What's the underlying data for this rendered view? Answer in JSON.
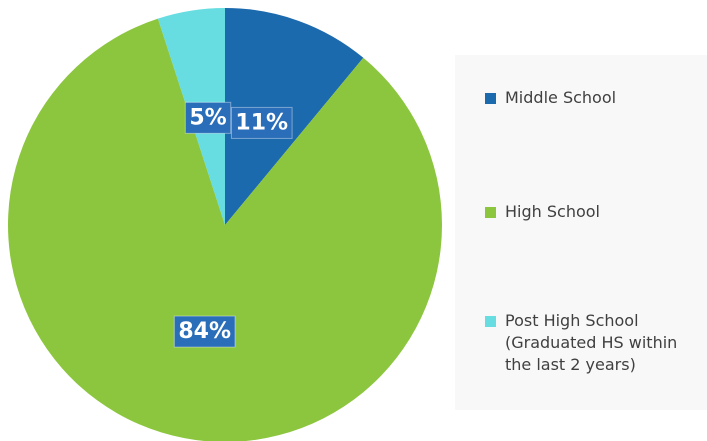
{
  "chart_data": {
    "type": "pie",
    "categories": [
      "Middle School",
      "High School",
      "Post High School (Graduated HS within the last 2 years)"
    ],
    "values": [
      11,
      84,
      5
    ],
    "value_labels": [
      "11%",
      "84%",
      "5%"
    ],
    "colors": [
      "#1c6aae",
      "#8cc63f",
      "#67dde1"
    ],
    "label_color": "#2a6db8",
    "legend": "right"
  }
}
